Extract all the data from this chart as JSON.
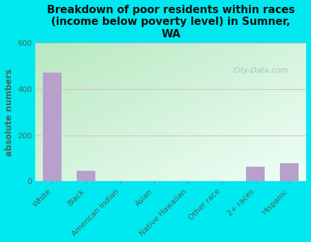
{
  "title": "Breakdown of poor residents within races\n(income below poverty level) in Sumner,\nWA",
  "ylabel": "absolute numbers",
  "categories": [
    "White",
    "Black",
    "American Indian",
    "Asian",
    "Native Hawaiian",
    "Other race",
    "2+ races",
    "Hispanic"
  ],
  "values": [
    470,
    45,
    0,
    0,
    0,
    0,
    65,
    80
  ],
  "bar_color": "#b8a0cc",
  "background_outer": "#00e8f0",
  "background_inner_topleft": "#b8e8c0",
  "background_inner_bottomright": "#f0fff8",
  "ylim": [
    0,
    600
  ],
  "yticks": [
    0,
    200,
    400,
    600
  ],
  "grid_color": "#d8c0c8",
  "watermark": "City-Data.com",
  "title_fontsize": 11,
  "ylabel_fontsize": 9,
  "tick_fontsize": 8,
  "tick_color": "#557766",
  "label_color": "#446655"
}
